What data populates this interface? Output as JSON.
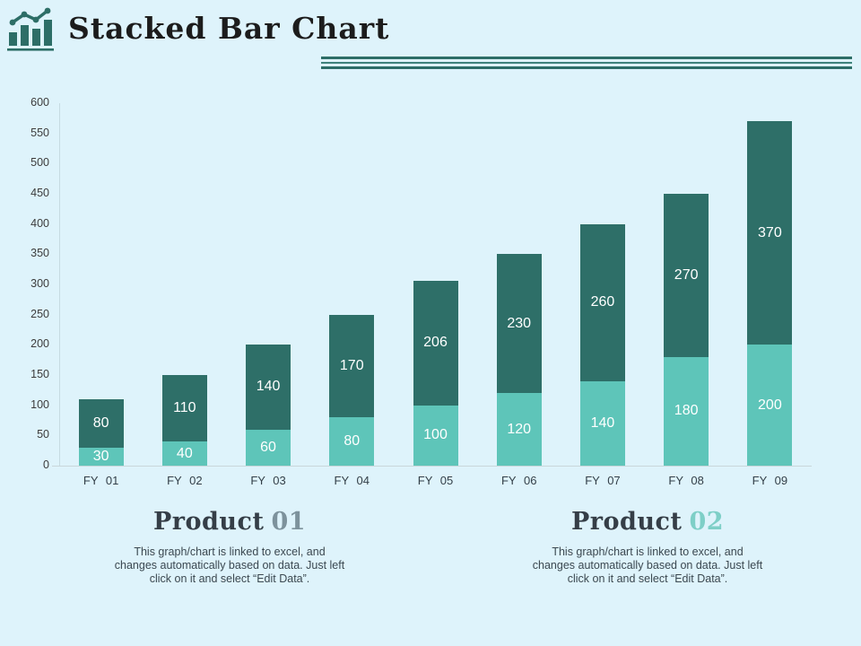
{
  "slide": {
    "title": "Stacked Bar Chart",
    "background_color": "#def3fb",
    "accent_dark": "#2d6e67",
    "accent_light": "#5ec5b9",
    "header_icon": "bar-chart-trend-icon"
  },
  "chart_data": {
    "type": "bar",
    "stacked": true,
    "title": "",
    "xlabel": "",
    "ylabel": "",
    "categories": [
      "FY  01",
      "FY  02",
      "FY  03",
      "FY  04",
      "FY  05",
      "FY  06",
      "FY  07",
      "FY  08",
      "FY  09"
    ],
    "series": [
      {
        "name": "Product 01",
        "color": "#5ec5b9",
        "label_color": "#ffffff",
        "values": [
          30,
          40,
          60,
          80,
          100,
          120,
          140,
          180,
          200
        ]
      },
      {
        "name": "Product 02",
        "color": "#2e6f68",
        "label_color": "#ffffff",
        "values": [
          80,
          110,
          140,
          170,
          206,
          230,
          260,
          270,
          370
        ]
      }
    ],
    "totals": [
      110,
      150,
      200,
      250,
      306,
      350,
      400,
      450,
      570
    ],
    "ylim": [
      0,
      600
    ],
    "yticks": [
      0,
      50,
      100,
      150,
      200,
      250,
      300,
      350,
      400,
      450,
      500,
      550,
      600
    ],
    "grid": false,
    "legend": "none",
    "value_labels": "inside-center-white"
  },
  "footer": {
    "products": [
      {
        "name_prefix": "Product",
        "number": "01",
        "number_color": "#7d929c",
        "description": "This graph/chart is linked to excel, and changes automatically based on data. Just left click on it and select “Edit Data”."
      },
      {
        "name_prefix": "Product",
        "number": "02",
        "number_color": "#7ecfc7",
        "description": "This graph/chart is linked to excel, and changes automatically based on data. Just left click on it and select “Edit Data”."
      }
    ]
  }
}
